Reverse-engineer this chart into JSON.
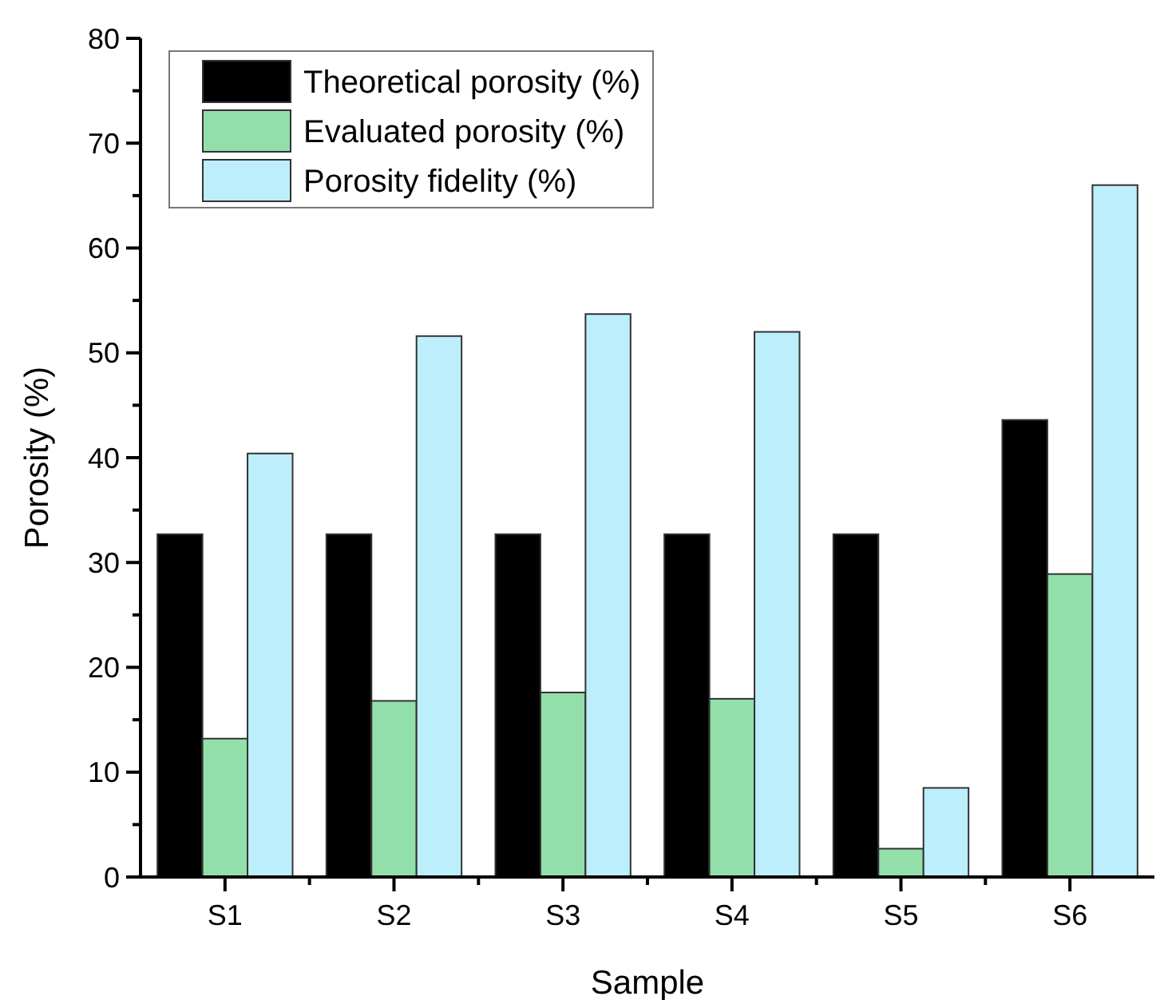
{
  "chart_data": {
    "type": "bar",
    "xlabel": "Sample",
    "ylabel": "Porosity (%)",
    "categories": [
      "S1",
      "S2",
      "S3",
      "S4",
      "S5",
      "S6"
    ],
    "series": [
      {
        "name": "Theoretical porosity (%)",
        "color": "#000000",
        "values": [
          32.7,
          32.7,
          32.7,
          32.7,
          32.7,
          43.6
        ]
      },
      {
        "name": "Evaluated porosity (%)",
        "color": "#93dfaa",
        "values": [
          13.2,
          16.8,
          17.6,
          17.0,
          2.7,
          28.9
        ]
      },
      {
        "name": "Porosity fidelity (%)",
        "color": "#bdeefc",
        "values": [
          40.4,
          51.6,
          53.7,
          52.0,
          8.5,
          66.0
        ]
      }
    ],
    "ylim": [
      0,
      80
    ],
    "yticks": [
      0,
      {
        "value": 5,
        "label": null
      },
      10,
      {
        "value": 15,
        "label": null
      },
      20,
      {
        "value": 25,
        "label": null
      },
      30,
      {
        "value": 35,
        "label": null
      },
      40,
      {
        "value": 45,
        "label": null
      },
      50,
      {
        "value": 55,
        "label": null
      },
      60,
      {
        "value": 65,
        "label": null
      },
      70,
      {
        "value": 75,
        "label": null
      },
      80
    ],
    "legend": "top left",
    "grid": false
  }
}
